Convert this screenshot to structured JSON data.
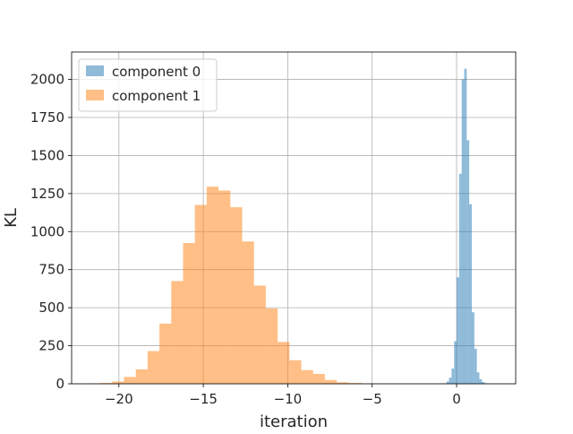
{
  "chart_data": {
    "type": "histogram",
    "title": "",
    "xlabel": "iteration",
    "ylabel": "KL",
    "xlim": [
      -22.8,
      3.5
    ],
    "ylim": [
      0,
      2180
    ],
    "xticks": [
      -20,
      -15,
      -10,
      -5,
      0
    ],
    "xtick_labels": [
      "−20",
      "−15",
      "−10",
      "−5",
      "0"
    ],
    "yticks": [
      0,
      250,
      500,
      750,
      1000,
      1250,
      1500,
      1750,
      2000
    ],
    "ytick_labels": [
      "0",
      "250",
      "500",
      "750",
      "1000",
      "1250",
      "1500",
      "1750",
      "2000"
    ],
    "grid": true,
    "legend_position": "top-left",
    "series": [
      {
        "name": "component 0",
        "color": "#1f77b4",
        "alpha": 0.5,
        "bin_edges": [
          -0.75,
          -0.6,
          -0.45,
          -0.3,
          -0.15,
          0.0,
          0.15,
          0.3,
          0.45,
          0.6,
          0.75,
          0.9,
          1.05,
          1.2,
          1.35,
          1.5,
          1.65,
          1.8,
          1.95
        ],
        "counts": [
          3,
          15,
          40,
          100,
          280,
          700,
          1380,
          2000,
          2070,
          1600,
          1180,
          470,
          230,
          75,
          30,
          12,
          4,
          1
        ]
      },
      {
        "name": "component 1",
        "color": "#ff7f0e",
        "alpha": 0.5,
        "bin_edges": [
          -21.8,
          -21.1,
          -20.4,
          -19.7,
          -19.0,
          -18.3,
          -17.6,
          -16.9,
          -16.2,
          -15.5,
          -14.8,
          -14.1,
          -13.4,
          -12.7,
          -12.0,
          -11.3,
          -10.6,
          -9.9,
          -9.2,
          -8.5,
          -7.8,
          -7.1,
          -6.4,
          -5.6,
          -4.9
        ],
        "counts": [
          3,
          5,
          15,
          45,
          95,
          215,
          395,
          675,
          925,
          1175,
          1295,
          1270,
          1160,
          935,
          645,
          495,
          275,
          155,
          90,
          65,
          25,
          10,
          5,
          1
        ]
      }
    ]
  }
}
